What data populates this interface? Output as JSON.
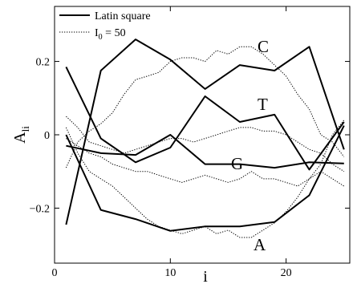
{
  "chart_data": {
    "type": "line",
    "xlabel": "i",
    "ylabel_main": "A",
    "ylabel_sub": "li",
    "xlim": [
      0,
      25.5
    ],
    "ylim": [
      -0.35,
      0.35
    ],
    "xticks": [
      0,
      10,
      20
    ],
    "xtick_labels": [
      "0",
      "10",
      "20"
    ],
    "yticks": [
      -0.2,
      0,
      0.2
    ],
    "ytick_labels": [
      "−0.2",
      "0",
      "0.2"
    ],
    "legend": {
      "placement": "top-left",
      "entries": [
        {
          "series": "latin",
          "label": "Latin square"
        },
        {
          "series": "io",
          "label_main": "I",
          "label_sub": "0",
          "label_rest": " = 50"
        }
      ]
    },
    "annotations": [
      "C",
      "T",
      "G",
      "A"
    ],
    "series": [
      {
        "name": "Latin square",
        "group": "latin",
        "base": "C",
        "style": "solid",
        "x": [
          1,
          4,
          7,
          10,
          13,
          16,
          19,
          22,
          25
        ],
        "y": [
          -0.245,
          0.175,
          0.26,
          0.205,
          0.125,
          0.19,
          0.175,
          0.24,
          -0.04
        ]
      },
      {
        "name": "Latin square",
        "group": "latin",
        "base": "T",
        "style": "solid",
        "x": [
          1,
          4,
          7,
          10,
          13,
          16,
          19,
          22,
          25
        ],
        "y": [
          0.185,
          -0.01,
          -0.075,
          -0.035,
          0.105,
          0.035,
          0.055,
          -0.095,
          0.035
        ]
      },
      {
        "name": "Latin square",
        "group": "latin",
        "base": "G",
        "style": "solid",
        "x": [
          1,
          4,
          7,
          10,
          13,
          16,
          19,
          22,
          25
        ],
        "y": [
          -0.03,
          -0.05,
          -0.055,
          0.0,
          -0.08,
          -0.08,
          -0.09,
          -0.075,
          -0.078
        ]
      },
      {
        "name": "Latin square",
        "group": "latin",
        "base": "A",
        "style": "solid",
        "x": [
          1,
          4,
          7,
          10,
          13,
          16,
          19,
          22,
          25
        ],
        "y": [
          0.0,
          -0.205,
          -0.23,
          -0.262,
          -0.25,
          -0.25,
          -0.238,
          -0.165,
          0.025
        ]
      },
      {
        "name": "I0 = 50",
        "group": "io",
        "base": "C",
        "style": "dotted",
        "x": [
          1,
          2,
          3,
          4,
          5,
          6,
          7,
          8,
          9,
          10,
          11,
          12,
          13,
          14,
          15,
          16,
          17,
          18,
          19,
          20,
          21,
          22,
          23,
          24,
          25
        ],
        "y": [
          -0.09,
          -0.02,
          0.01,
          0.03,
          0.06,
          0.11,
          0.15,
          0.16,
          0.17,
          0.2,
          0.21,
          0.21,
          0.2,
          0.23,
          0.22,
          0.24,
          0.24,
          0.22,
          0.19,
          0.16,
          0.11,
          0.07,
          0.0,
          -0.02,
          -0.06
        ]
      },
      {
        "name": "I0 = 50",
        "group": "io",
        "base": "T",
        "style": "dotted",
        "x": [
          1,
          2,
          3,
          4,
          5,
          6,
          7,
          8,
          9,
          10,
          11,
          12,
          13,
          14,
          15,
          16,
          17,
          18,
          19,
          20,
          21,
          22,
          23,
          24,
          25
        ],
        "y": [
          0.05,
          0.02,
          -0.02,
          -0.03,
          -0.04,
          -0.05,
          -0.04,
          -0.03,
          -0.02,
          -0.01,
          -0.01,
          -0.02,
          -0.01,
          0.0,
          0.01,
          0.02,
          0.02,
          0.01,
          0.01,
          0.0,
          -0.02,
          -0.04,
          -0.05,
          -0.08,
          -0.1
        ]
      },
      {
        "name": "I0 = 50",
        "group": "io",
        "base": "G",
        "style": "dotted",
        "x": [
          1,
          2,
          3,
          4,
          5,
          6,
          7,
          8,
          9,
          10,
          11,
          12,
          13,
          14,
          15,
          16,
          17,
          18,
          19,
          20,
          21,
          22,
          23,
          24,
          25
        ],
        "y": [
          -0.01,
          -0.03,
          -0.05,
          -0.06,
          -0.08,
          -0.09,
          -0.1,
          -0.1,
          -0.11,
          -0.12,
          -0.13,
          -0.12,
          -0.11,
          -0.12,
          -0.13,
          -0.12,
          -0.1,
          -0.12,
          -0.12,
          -0.13,
          -0.14,
          -0.12,
          -0.1,
          -0.12,
          -0.14
        ]
      },
      {
        "name": "I0 = 50",
        "group": "io",
        "base": "A",
        "style": "dotted",
        "x": [
          1,
          2,
          3,
          4,
          5,
          6,
          7,
          8,
          9,
          10,
          11,
          12,
          13,
          14,
          15,
          16,
          17,
          18,
          19,
          20,
          21,
          22,
          23,
          24,
          25
        ],
        "y": [
          0.02,
          -0.05,
          -0.1,
          -0.12,
          -0.14,
          -0.17,
          -0.2,
          -0.23,
          -0.25,
          -0.26,
          -0.27,
          -0.26,
          -0.25,
          -0.27,
          -0.26,
          -0.28,
          -0.28,
          -0.26,
          -0.24,
          -0.21,
          -0.17,
          -0.12,
          -0.08,
          0.0,
          0.04
        ]
      }
    ]
  }
}
